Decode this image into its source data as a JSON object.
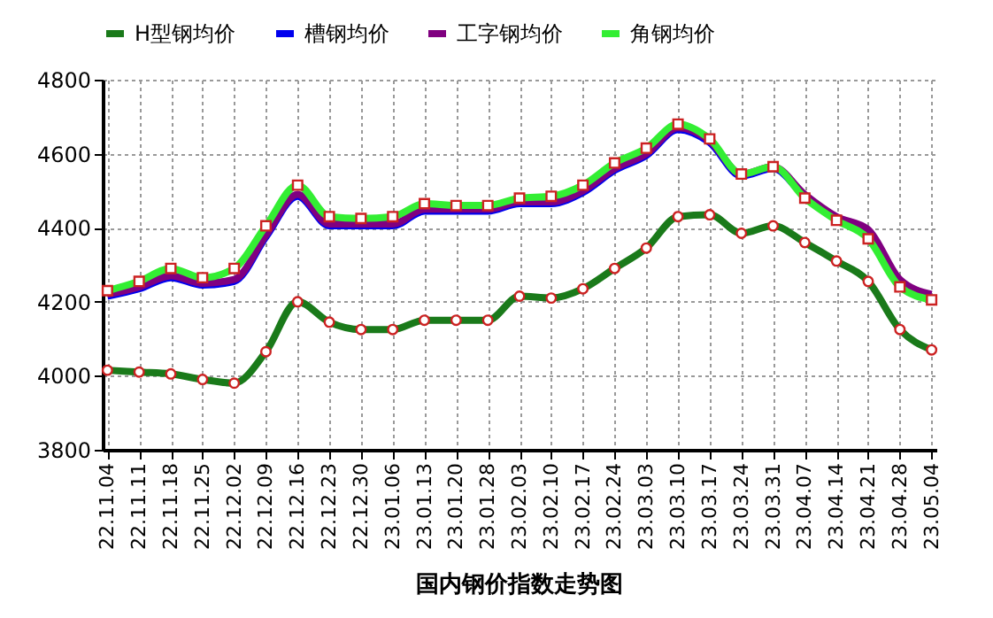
{
  "chart_data": {
    "type": "line",
    "title": "国内钢价指数走势图",
    "categories": [
      "22.11.04",
      "22.11.11",
      "22.11.18",
      "22.11.25",
      "22.12.02",
      "22.12.09",
      "22.12.16",
      "22.12.23",
      "22.12.30",
      "23.01.06",
      "23.01.13",
      "23.01.20",
      "23.01.28",
      "23.02.03",
      "23.02.10",
      "23.02.17",
      "23.02.24",
      "23.03.03",
      "23.03.10",
      "23.03.17",
      "23.03.24",
      "23.03.31",
      "23.04.07",
      "23.04.14",
      "23.04.21",
      "23.04.28",
      "23.05.04"
    ],
    "series": [
      {
        "name": "H型钢均价",
        "color": "#1a7a1a",
        "marker": "circle",
        "values": [
          4015,
          4010,
          4005,
          3990,
          3980,
          4065,
          4200,
          4145,
          4125,
          4125,
          4150,
          4150,
          4150,
          4215,
          4210,
          4235,
          4290,
          4345,
          4430,
          4435,
          4385,
          4405,
          4360,
          4310,
          4255,
          4125,
          4070
        ]
      },
      {
        "name": "槽钢均价",
        "color": "#0000ee",
        "marker": "none",
        "values": [
          4215,
          4235,
          4265,
          4245,
          4255,
          4375,
          4485,
          4405,
          4405,
          4405,
          4445,
          4445,
          4445,
          4465,
          4465,
          4495,
          4555,
          4595,
          4665,
          4630,
          4540,
          4560,
          4485,
          4425,
          null,
          null,
          null
        ]
      },
      {
        "name": "工字钢均价",
        "color": "#800080",
        "marker": "none",
        "values": [
          4220,
          4240,
          4270,
          4250,
          4260,
          4380,
          4490,
          4410,
          4410,
          4410,
          4450,
          4450,
          4450,
          4470,
          4470,
          4500,
          4560,
          4600,
          4670,
          4635,
          4545,
          4565,
          4490,
          4430,
          4395,
          4260,
          4220
        ]
      },
      {
        "name": "角钢均价",
        "color": "#33ee33",
        "marker": "square",
        "values": [
          4230,
          4255,
          4290,
          4265,
          4290,
          4405,
          4515,
          4430,
          4425,
          4430,
          4465,
          4460,
          4460,
          4480,
          4485,
          4515,
          4575,
          4615,
          4680,
          4640,
          4545,
          4565,
          4480,
          4420,
          4370,
          4240,
          4205
        ]
      }
    ],
    "ylim": [
      3800,
      4800
    ],
    "yticks": [
      3800,
      4000,
      4200,
      4400,
      4600,
      4800
    ],
    "grid": true,
    "legend": "top"
  }
}
